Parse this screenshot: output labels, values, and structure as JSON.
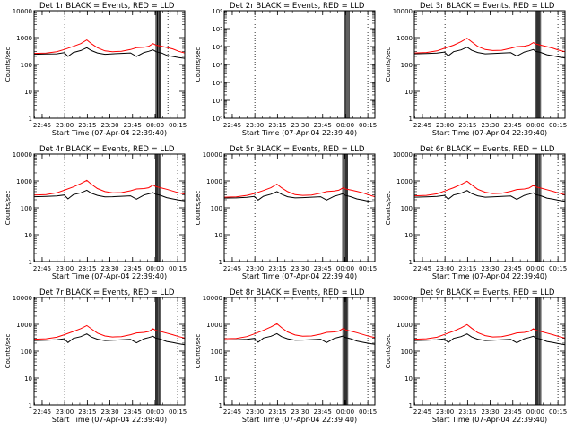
{
  "time_axis": {
    "xlabel": "Start Time (07-Apr-04 22:39:40)",
    "ticks": [
      "22:45",
      "23:00",
      "23:15",
      "23:30",
      "23:45",
      "00:00",
      "00:15"
    ],
    "tick_minutes": [
      5.33,
      20.33,
      35.33,
      50.33,
      65.33,
      80.33,
      95.33
    ],
    "xlim_minutes": [
      0,
      100
    ]
  },
  "chart_data": [
    {
      "type": "line",
      "title": "Det 1r BLACK = Events, RED = LLD",
      "ylabel": "Counts/sec",
      "yscale": "log",
      "ylim": [
        1,
        10000
      ],
      "yticks": [
        "1",
        "10",
        "100",
        "1000",
        "10000"
      ],
      "vlines_minutes": [
        20.33,
        88.8
      ],
      "gaps_minutes": [
        [
          80.9,
          81.6
        ],
        [
          82.1,
          82.8
        ],
        [
          83.4,
          84.0
        ]
      ],
      "series": [
        {
          "color": "#ff0000",
          "x": [
            0,
            8,
            15,
            20,
            26,
            31,
            35,
            38,
            42,
            47,
            52,
            58,
            64,
            68,
            73,
            76,
            79,
            80.9,
            84.5,
            88,
            92,
            96,
            100
          ],
          "y": [
            260,
            265,
            300,
            360,
            470,
            600,
            820,
            600,
            420,
            320,
            300,
            310,
            360,
            420,
            440,
            470,
            600,
            520,
            480,
            430,
            380,
            310,
            270
          ]
        },
        {
          "color": "#000000",
          "x": [
            0,
            8,
            15,
            20,
            22.5,
            26,
            31,
            35,
            38,
            42,
            47,
            52,
            58,
            64,
            68,
            73,
            76,
            79,
            80.9,
            84.5,
            88,
            92,
            96,
            100
          ],
          "y": [
            240,
            245,
            250,
            275,
            200,
            280,
            330,
            420,
            330,
            270,
            240,
            250,
            260,
            270,
            200,
            280,
            310,
            350,
            300,
            270,
            220,
            200,
            180,
            170
          ]
        }
      ]
    },
    {
      "type": "line",
      "title": "Det 2r BLACK = Events, RED = LLD",
      "ylabel": "Counts/sec",
      "yscale": "log",
      "ylim": [
        1,
        1000000
      ],
      "yticks": [
        "10⁰",
        "10¹",
        "10²",
        "10³",
        "10⁴",
        "10⁵",
        "10⁶"
      ],
      "vlines_minutes": [
        20.33,
        95.3
      ],
      "gaps_minutes": [
        [
          79.5,
          80.2
        ],
        [
          80.8,
          81.5
        ],
        [
          82.2,
          82.9
        ]
      ],
      "series": []
    },
    {
      "type": "line",
      "title": "Det 3r BLACK = Events, RED = LLD",
      "ylabel": "Counts/sec",
      "yscale": "log",
      "ylim": [
        1,
        10000
      ],
      "yticks": [
        "1",
        "10",
        "100",
        "1000",
        "10000"
      ],
      "vlines_minutes": [
        20.33,
        95.3
      ],
      "gaps_minutes": [
        [
          80.5,
          81.2
        ],
        [
          81.8,
          82.5
        ],
        [
          83.1,
          83.8
        ]
      ],
      "series": [
        {
          "color": "#ff0000",
          "x": [
            0,
            8,
            15,
            20,
            26,
            31,
            35,
            38,
            42,
            47,
            52,
            58,
            64,
            68,
            73,
            76,
            79,
            80.5,
            84.0,
            88,
            92,
            96,
            100
          ],
          "y": [
            270,
            280,
            320,
            400,
            520,
            700,
            950,
            700,
            470,
            360,
            330,
            340,
            400,
            460,
            480,
            520,
            650,
            580,
            520,
            460,
            400,
            340,
            300
          ]
        },
        {
          "color": "#000000",
          "x": [
            0,
            8,
            15,
            20,
            22.5,
            26,
            31,
            35,
            38,
            42,
            47,
            52,
            58,
            64,
            68,
            73,
            76,
            79,
            80.5,
            84.0,
            88,
            92,
            96,
            100
          ],
          "y": [
            250,
            255,
            265,
            290,
            210,
            300,
            350,
            440,
            340,
            280,
            250,
            255,
            265,
            275,
            205,
            290,
            320,
            360,
            310,
            280,
            230,
            210,
            190,
            175
          ]
        }
      ]
    },
    {
      "type": "line",
      "title": "Det 4r BLACK = Events, RED = LLD",
      "ylabel": "Counts/sec",
      "yscale": "log",
      "ylim": [
        1,
        10000
      ],
      "yticks": [
        "1",
        "10",
        "100",
        "1000",
        "10000"
      ],
      "vlines_minutes": [
        20.33,
        95.3
      ],
      "gaps_minutes": [
        [
          80.6,
          81.3
        ],
        [
          81.9,
          82.6
        ],
        [
          83.2,
          83.9
        ]
      ],
      "series": [
        {
          "color": "#ff0000",
          "x": [
            0,
            8,
            15,
            20,
            26,
            31,
            35,
            38,
            42,
            47,
            52,
            58,
            64,
            68,
            73,
            76,
            79,
            80.6,
            84.0,
            88,
            92,
            96,
            100
          ],
          "y": [
            300,
            310,
            360,
            450,
            600,
            800,
            1050,
            760,
            520,
            400,
            360,
            370,
            430,
            500,
            520,
            560,
            700,
            620,
            560,
            490,
            420,
            360,
            320
          ]
        },
        {
          "color": "#000000",
          "x": [
            0,
            8,
            15,
            20,
            22.5,
            26,
            31,
            35,
            38,
            42,
            47,
            52,
            58,
            64,
            68,
            73,
            76,
            79,
            80.6,
            84.0,
            88,
            92,
            96,
            100
          ],
          "y": [
            260,
            265,
            275,
            300,
            215,
            310,
            360,
            450,
            350,
            290,
            255,
            260,
            270,
            280,
            210,
            300,
            330,
            370,
            320,
            290,
            240,
            215,
            195,
            180
          ]
        }
      ]
    },
    {
      "type": "line",
      "title": "Det 5r BLACK = Events, RED = LLD",
      "ylabel": "Counts/sec",
      "yscale": "log",
      "ylim": [
        1,
        10000
      ],
      "yticks": [
        "1",
        "10",
        "100",
        "1000",
        "10000"
      ],
      "vlines_minutes": [
        20.33,
        95.3
      ],
      "gaps_minutes": [
        [
          78.6,
          79.3
        ],
        [
          79.9,
          80.6
        ],
        [
          81.2,
          81.9
        ]
      ],
      "series": [
        {
          "color": "#ff0000",
          "x": [
            0,
            8,
            15,
            20,
            26,
            31,
            35,
            38,
            42,
            47,
            52,
            58,
            64,
            68,
            73,
            76,
            79,
            80.5,
            84.0,
            88,
            92,
            96,
            100
          ],
          "y": [
            250,
            255,
            290,
            340,
            440,
            560,
            760,
            560,
            400,
            310,
            290,
            300,
            350,
            400,
            420,
            450,
            560,
            500,
            460,
            410,
            360,
            300,
            260
          ]
        },
        {
          "color": "#000000",
          "x": [
            0,
            8,
            15,
            20,
            22.5,
            26,
            31,
            35,
            38,
            42,
            47,
            52,
            58,
            64,
            68,
            73,
            76,
            79,
            80.5,
            84.0,
            88,
            92,
            96,
            100
          ],
          "y": [
            230,
            235,
            245,
            265,
            195,
            270,
            320,
            400,
            320,
            260,
            235,
            240,
            250,
            260,
            195,
            270,
            300,
            340,
            290,
            260,
            215,
            195,
            175,
            165
          ]
        }
      ]
    },
    {
      "type": "line",
      "title": "Det 6r BLACK = Events, RED = LLD",
      "ylabel": "Counts/sec",
      "yscale": "log",
      "ylim": [
        1,
        10000
      ],
      "yticks": [
        "1",
        "10",
        "100",
        "1000",
        "10000"
      ],
      "vlines_minutes": [
        20.33,
        95.3
      ],
      "gaps_minutes": [
        [
          80.6,
          81.3
        ],
        [
          81.9,
          82.6
        ],
        [
          83.2,
          83.9
        ]
      ],
      "series": [
        {
          "color": "#ff0000",
          "x": [
            0,
            8,
            15,
            20,
            26,
            31,
            35,
            38,
            42,
            47,
            52,
            58,
            64,
            68,
            73,
            76,
            79,
            80.6,
            84.0,
            88,
            92,
            96,
            100
          ],
          "y": [
            280,
            290,
            330,
            420,
            560,
            740,
            980,
            720,
            490,
            380,
            340,
            350,
            410,
            480,
            500,
            540,
            680,
            600,
            540,
            470,
            410,
            350,
            310
          ]
        },
        {
          "color": "#000000",
          "x": [
            0,
            8,
            15,
            20,
            22.5,
            26,
            31,
            35,
            38,
            42,
            47,
            52,
            58,
            64,
            68,
            73,
            76,
            79,
            80.6,
            84.0,
            88,
            92,
            96,
            100
          ],
          "y": [
            250,
            255,
            265,
            290,
            210,
            300,
            350,
            440,
            340,
            280,
            250,
            255,
            265,
            275,
            205,
            290,
            320,
            360,
            310,
            280,
            230,
            210,
            190,
            175
          ]
        }
      ]
    },
    {
      "type": "line",
      "title": "Det 7r BLACK = Events, RED = LLD",
      "ylabel": "Counts/sec",
      "yscale": "log",
      "ylim": [
        1,
        10000
      ],
      "yticks": [
        "1",
        "10",
        "100",
        "1000",
        "10000"
      ],
      "vlines_minutes": [
        20.33,
        95.3
      ],
      "gaps_minutes": [
        [
          80.6,
          81.3
        ],
        [
          81.9,
          82.6
        ],
        [
          83.2,
          83.9
        ]
      ],
      "series": [
        {
          "color": "#ff0000",
          "x": [
            0,
            8,
            15,
            20,
            26,
            31,
            35,
            38,
            42,
            47,
            52,
            58,
            64,
            68,
            73,
            76,
            79,
            80.6,
            84.0,
            88,
            92,
            96,
            100
          ],
          "y": [
            280,
            290,
            330,
            410,
            540,
            690,
            900,
            680,
            470,
            370,
            340,
            350,
            410,
            480,
            500,
            540,
            680,
            600,
            540,
            470,
            410,
            350,
            310
          ]
        },
        {
          "color": "#000000",
          "x": [
            0,
            8,
            15,
            20,
            22.5,
            26,
            31,
            35,
            38,
            42,
            47,
            52,
            58,
            64,
            68,
            73,
            76,
            79,
            80.6,
            84.0,
            88,
            92,
            96,
            100
          ],
          "y": [
            250,
            255,
            265,
            290,
            210,
            300,
            350,
            440,
            340,
            280,
            250,
            255,
            265,
            275,
            205,
            290,
            320,
            360,
            310,
            280,
            230,
            210,
            190,
            175
          ]
        }
      ]
    },
    {
      "type": "line",
      "title": "Det 8r BLACK = Events, RED = LLD",
      "ylabel": "Counts/sec",
      "yscale": "log",
      "ylim": [
        1,
        10000
      ],
      "yticks": [
        "1",
        "10",
        "100",
        "1000",
        "10000"
      ],
      "vlines_minutes": [
        20.33,
        95.3
      ],
      "gaps_minutes": [
        [
          78.7,
          79.4
        ],
        [
          80.0,
          80.7
        ],
        [
          81.3,
          82.0
        ]
      ],
      "series": [
        {
          "color": "#ff0000",
          "x": [
            0,
            8,
            15,
            20,
            26,
            31,
            35,
            38,
            42,
            47,
            52,
            58,
            64,
            68,
            73,
            76,
            79,
            80.5,
            84.0,
            88,
            92,
            96,
            100
          ],
          "y": [
            290,
            300,
            350,
            440,
            600,
            800,
            1050,
            760,
            520,
            400,
            360,
            370,
            430,
            500,
            520,
            560,
            700,
            620,
            560,
            490,
            420,
            360,
            320
          ]
        },
        {
          "color": "#000000",
          "x": [
            0,
            8,
            15,
            20,
            22.5,
            26,
            31,
            35,
            38,
            42,
            47,
            52,
            58,
            64,
            68,
            73,
            76,
            79,
            80.5,
            84.0,
            88,
            92,
            96,
            100
          ],
          "y": [
            260,
            265,
            275,
            300,
            215,
            310,
            360,
            450,
            350,
            290,
            255,
            260,
            270,
            280,
            210,
            300,
            330,
            370,
            320,
            290,
            240,
            215,
            195,
            180
          ]
        }
      ]
    },
    {
      "type": "line",
      "title": "Det 9r BLACK = Events, RED = LLD",
      "ylabel": "Counts/sec",
      "yscale": "log",
      "ylim": [
        1,
        10000
      ],
      "yticks": [
        "1",
        "10",
        "100",
        "1000",
        "10000"
      ],
      "vlines_minutes": [
        20.33,
        95.3
      ],
      "gaps_minutes": [
        [
          80.6,
          81.3
        ],
        [
          81.9,
          82.6
        ],
        [
          83.2,
          83.9
        ]
      ],
      "series": [
        {
          "color": "#ff0000",
          "x": [
            0,
            8,
            15,
            20,
            26,
            31,
            35,
            38,
            42,
            47,
            52,
            58,
            64,
            68,
            73,
            76,
            79,
            80.6,
            84.0,
            88,
            92,
            96,
            100
          ],
          "y": [
            280,
            290,
            330,
            420,
            560,
            740,
            980,
            720,
            490,
            380,
            340,
            350,
            410,
            480,
            500,
            540,
            680,
            600,
            540,
            470,
            410,
            350,
            310
          ]
        },
        {
          "color": "#000000",
          "x": [
            0,
            8,
            15,
            20,
            22.5,
            26,
            31,
            35,
            38,
            42,
            47,
            52,
            58,
            64,
            68,
            73,
            76,
            79,
            80.6,
            84.0,
            88,
            92,
            96,
            100
          ],
          "y": [
            250,
            255,
            265,
            290,
            210,
            300,
            350,
            440,
            340,
            280,
            250,
            255,
            265,
            275,
            205,
            290,
            320,
            360,
            310,
            280,
            230,
            210,
            190,
            175
          ]
        }
      ]
    }
  ]
}
